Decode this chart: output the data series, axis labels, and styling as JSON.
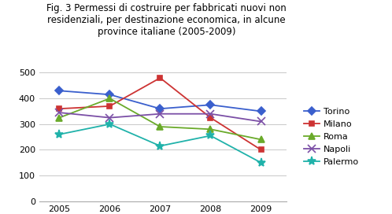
{
  "title": "Fig. 3 Permessi di costruire per fabbricati nuovi non\nresidenziali, per destinazione economica, in alcune\nprovince italiane (2005-2009)",
  "years": [
    2005,
    2006,
    2007,
    2008,
    2009
  ],
  "series": {
    "Torino": [
      430,
      415,
      360,
      375,
      350
    ],
    "Milano": [
      360,
      370,
      480,
      325,
      200
    ],
    "Roma": [
      325,
      400,
      290,
      280,
      240
    ],
    "Napoli": [
      345,
      325,
      340,
      340,
      310
    ],
    "Palermo": [
      260,
      300,
      215,
      255,
      150
    ]
  },
  "colors": {
    "Torino": "#3a5fcd",
    "Milano": "#cd3333",
    "Roma": "#6aaa2a",
    "Napoli": "#7b4fa6",
    "Palermo": "#20b2aa"
  },
  "markers": {
    "Torino": "D",
    "Milano": "s",
    "Roma": "^",
    "Napoli": "x",
    "Palermo": "*"
  },
  "ylim": [
    0,
    500
  ],
  "yticks": [
    0,
    100,
    200,
    300,
    400,
    500
  ],
  "title_fontsize": 8.5,
  "legend_fontsize": 8,
  "tick_fontsize": 8,
  "background_color": "#ffffff",
  "grid_color": "#c8c8c8"
}
